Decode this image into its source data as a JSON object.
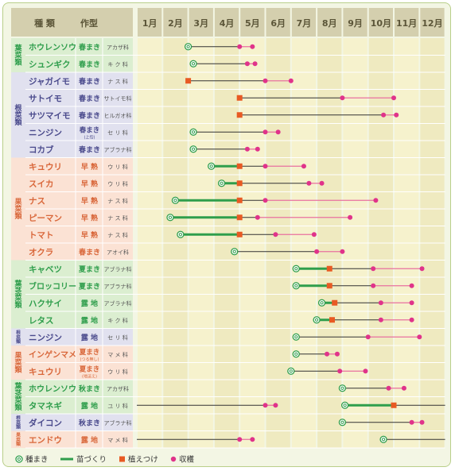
{
  "chart_data": {
    "type": "gantt",
    "title": "",
    "header": {
      "kind_label": "種 類",
      "type_label": "作型"
    },
    "months": [
      "1月",
      "2月",
      "3月",
      "4月",
      "5月",
      "6月",
      "7月",
      "8月",
      "9月",
      "10月",
      "11月",
      "12月"
    ],
    "groups": [
      {
        "name": "葉菜類",
        "color": "#dbeed0",
        "label_color": "#2f9e4c",
        "rows": [
          0,
          1
        ]
      },
      {
        "name": "根菜類",
        "color": "#e1e1ef",
        "label_color": "#4a4a8c",
        "rows": [
          2,
          3,
          4,
          5,
          6
        ]
      },
      {
        "name": "果菜類",
        "color": "#fbe2d4",
        "label_color": "#d9673a",
        "rows": [
          7,
          8,
          9,
          10,
          11,
          12
        ]
      },
      {
        "name": "葉茎菜類",
        "color": "#dbeed0",
        "label_color": "#2f9e4c",
        "rows": [
          13,
          14,
          15,
          16
        ]
      },
      {
        "name": "根菜類",
        "color": "#e1e1ef",
        "label_color": "#4a4a8c",
        "rows": [
          17
        ]
      },
      {
        "name": "果菜類",
        "color": "#fbe2d4",
        "label_color": "#d9673a",
        "rows": [
          18,
          19
        ]
      },
      {
        "name": "葉茎菜類",
        "color": "#dbeed0",
        "label_color": "#2f9e4c",
        "rows": [
          20,
          21
        ]
      },
      {
        "name": "根菜類",
        "color": "#e1e1ef",
        "label_color": "#4a4a8c",
        "rows": [
          22
        ]
      },
      {
        "name": "果菜類",
        "color": "#fbe2d4",
        "label_color": "#d9673a",
        "rows": [
          23
        ]
      }
    ],
    "rows": [
      {
        "crop": "ホウレンソウ",
        "type": "春まき",
        "type_note": "",
        "family": "アカザ科",
        "sow": 3.0,
        "transplant": null,
        "harvest": [
          5.0,
          5.5
        ],
        "seedling": null,
        "extra": null
      },
      {
        "crop": "シュンギク",
        "type": "春まき",
        "type_note": "",
        "family": "キ ク 科",
        "sow": 3.2,
        "transplant": null,
        "harvest": [
          5.3,
          5.6
        ],
        "seedling": null,
        "extra": null
      },
      {
        "crop": "ジャガイモ",
        "type": "春まき",
        "type_note": "",
        "family": "ナ ス 科",
        "sow": null,
        "transplant": 3.0,
        "harvest": [
          6.0,
          7.0
        ],
        "seedling": null,
        "extra": null
      },
      {
        "crop": "サトイモ",
        "type": "春まき",
        "type_note": "",
        "family": "サトイモ科",
        "sow": null,
        "transplant": 5.0,
        "harvest": [
          9.0,
          11.0
        ],
        "seedling": null,
        "extra": null
      },
      {
        "crop": "サツマイモ",
        "type": "春まき",
        "type_note": "",
        "family": "ヒルガオ科",
        "sow": null,
        "transplant": 5.0,
        "harvest": [
          10.6,
          11.1
        ],
        "seedling": null,
        "extra": null
      },
      {
        "crop": "ニンジン",
        "type": "春まき",
        "type_note": "(上旬)",
        "family": "セ リ 科",
        "sow": 3.2,
        "transplant": null,
        "harvest": [
          6.0,
          6.5
        ],
        "seedling": null,
        "extra": null
      },
      {
        "crop": "コカブ",
        "type": "春まき",
        "type_note": "",
        "family": "アブラナ科",
        "sow": 3.2,
        "transplant": null,
        "harvest": [
          5.3,
          5.7
        ],
        "seedling": null,
        "extra": null
      },
      {
        "crop": "キュウリ",
        "type": "早 熟",
        "type_note": "",
        "family": "ウ リ 科",
        "sow": 3.9,
        "transplant": 5.0,
        "harvest": [
          6.0,
          7.5
        ],
        "seedling": [
          3.9,
          5.0
        ],
        "extra": null
      },
      {
        "crop": "スイカ",
        "type": "早 熟",
        "type_note": "",
        "family": "ウ リ 科",
        "sow": 4.3,
        "transplant": 5.0,
        "harvest": [
          7.7,
          8.2
        ],
        "seedling": [
          4.3,
          5.0
        ],
        "extra": null
      },
      {
        "crop": "ナス",
        "type": "早 熟",
        "type_note": "",
        "family": "ナ ス 科",
        "sow": 2.5,
        "transplant": 5.0,
        "harvest": [
          6.0,
          10.3
        ],
        "seedling": [
          2.5,
          5.0
        ],
        "extra": null
      },
      {
        "crop": "ピーマン",
        "type": "早 熟",
        "type_note": "",
        "family": "ナ ス 科",
        "sow": 2.3,
        "transplant": 5.0,
        "harvest": [
          5.7,
          9.3
        ],
        "seedling": [
          2.3,
          5.0
        ],
        "extra": null
      },
      {
        "crop": "トマト",
        "type": "早 熟",
        "type_note": "",
        "family": "ナ ス 科",
        "sow": 2.7,
        "transplant": 5.0,
        "harvest": [
          6.4,
          7.9
        ],
        "seedling": [
          2.7,
          5.0
        ],
        "extra": null
      },
      {
        "crop": "オクラ",
        "type": "春まき",
        "type_note": "",
        "family": "アオイ科",
        "sow": 4.8,
        "transplant": null,
        "harvest": [
          8.0,
          9.0
        ],
        "seedling": null,
        "extra": null
      },
      {
        "crop": "キャベツ",
        "type": "夏まき",
        "type_note": "",
        "family": "アブラナ科",
        "sow": 7.2,
        "transplant": 8.5,
        "harvest": [
          10.2,
          12.1
        ],
        "seedling": [
          7.2,
          8.5
        ],
        "extra": null
      },
      {
        "crop": "ブロッコリー",
        "type": "夏まき",
        "type_note": "",
        "family": "アブラナ科",
        "sow": 7.2,
        "transplant": 8.5,
        "harvest": [
          10.2,
          11.7
        ],
        "seedling": [
          7.2,
          8.5
        ],
        "extra": null
      },
      {
        "crop": "ハクサイ",
        "type": "露 地",
        "type_note": "",
        "family": "アブラナ科",
        "sow": 8.2,
        "transplant": 8.7,
        "harvest": [
          10.5,
          11.7
        ],
        "seedling": [
          8.2,
          8.7
        ],
        "extra": null
      },
      {
        "crop": "レタス",
        "type": "露 地",
        "type_note": "",
        "family": "キ ク 科",
        "sow": 8.0,
        "transplant": 8.6,
        "harvest": [
          10.5,
          11.7
        ],
        "seedling": [
          8.0,
          8.6
        ],
        "extra": null
      },
      {
        "crop": "ニンジン",
        "type": "露 地",
        "type_note": "",
        "family": "セ リ 科",
        "sow": 7.2,
        "transplant": null,
        "harvest": [
          10.0,
          12.0
        ],
        "seedling": null,
        "extra": null
      },
      {
        "crop": "インゲンマメ",
        "type": "夏まき",
        "type_note": "(つる無し)",
        "family": "マ メ 科",
        "sow": 7.2,
        "transplant": null,
        "harvest": [
          8.4,
          8.8
        ],
        "seedling": null,
        "extra": null
      },
      {
        "crop": "キュウリ",
        "type": "夏まき",
        "type_note": "(地這え)",
        "family": "ウ リ 科",
        "sow": 7.0,
        "transplant": null,
        "harvest": [
          8.9,
          9.9
        ],
        "seedling": null,
        "extra": null
      },
      {
        "crop": "ホウレンソウ",
        "type": "秋まき",
        "type_note": "",
        "family": "アカザ科",
        "sow": 9.0,
        "transplant": null,
        "harvest": [
          10.8,
          11.4
        ],
        "seedling": null,
        "extra": null
      },
      {
        "crop": "タマネギ",
        "type": "露 地",
        "type_note": "",
        "family": "ユ リ 科",
        "sow": 9.1,
        "transplant": 11.0,
        "harvest": [
          6.0,
          6.4
        ],
        "seedling": [
          9.1,
          11.0
        ],
        "extra": [
          1.0,
          6.0
        ]
      },
      {
        "crop": "ダイコン",
        "type": "秋まき",
        "type_note": "",
        "family": "アブラナ科",
        "sow": 9.0,
        "transplant": null,
        "harvest": [
          11.7,
          12.1
        ],
        "seedling": null,
        "extra": null
      },
      {
        "crop": "エンドウ",
        "type": "露 地",
        "type_note": "",
        "family": "マ メ 科",
        "sow": 10.6,
        "transplant": null,
        "harvest": [
          5.0,
          5.5
        ],
        "seedling": null,
        "extra": [
          1.0,
          5.0
        ]
      }
    ],
    "legend": [
      {
        "label": "種まき",
        "symbol": "sow"
      },
      {
        "label": "苗づくり",
        "symbol": "seedling"
      },
      {
        "label": "植えつけ",
        "symbol": "transplant"
      },
      {
        "label": "収穫",
        "symbol": "harvest"
      }
    ],
    "colors": {
      "sow": "#2f9e4c",
      "seedling": "#2f9e4c",
      "transplant": "#e85a23",
      "harvest": "#e0338a",
      "harvest_line": "#e8709f",
      "grow_line": "#333333",
      "header_bg": "#d4cfae",
      "grid_bg": "#f6f2cd",
      "grid_bg_alt": "#efeac0"
    }
  }
}
